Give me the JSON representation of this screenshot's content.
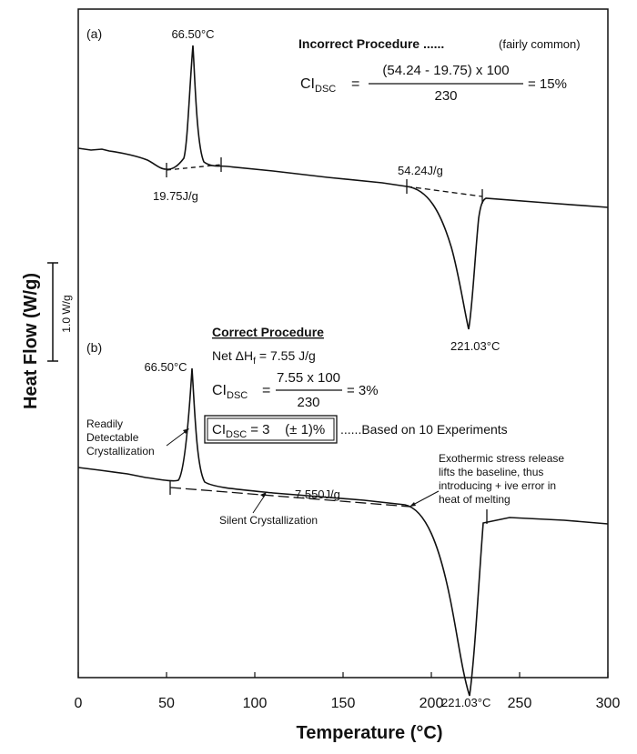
{
  "chart_data": {
    "type": "line",
    "xlabel": "Temperature (°C)",
    "ylabel": "Heat Flow (W/g)",
    "xlim": [
      0,
      300
    ],
    "xticks": [
      "0",
      "50",
      "100",
      "150",
      "200",
      "250",
      "300"
    ],
    "scale_bar_label": "1.0 W/g",
    "panels": [
      {
        "panel_label": "(a)",
        "peak_exo": {
          "temp": 66.5,
          "label": "66.50°C"
        },
        "peak_endo": {
          "temp": 221.03,
          "label": "221.03°C"
        },
        "area_cryst": "19.75J/g",
        "area_melt": "54.24J/g",
        "heading": "Incorrect Procedure ......",
        "heading_note": "(fairly common)",
        "formula_lhs": "CI",
        "formula_sub": "DSC",
        "formula_eq": "=",
        "formula_num": "(54.24 - 19.75) x 100",
        "formula_den": "230",
        "formula_result": "= 15%"
      },
      {
        "panel_label": "(b)",
        "peak_exo": {
          "temp": 66.5,
          "label": "66.50°C"
        },
        "peak_endo": {
          "temp": 221.03,
          "label": "221.03°C"
        },
        "heading": "Correct Procedure",
        "net_label": "Net ΔH",
        "net_sub": "f",
        "net_value": "= 7.55 J/g",
        "formula_lhs": "CI",
        "formula_sub": "DSC",
        "formula_eq": "=",
        "formula_num": "7.55 x 100",
        "formula_den": "230",
        "formula_result": "= 3%",
        "box_lhs": "CI",
        "box_sub": "DSC",
        "box_value": "= 3    (± 1)%",
        "box_note": "......Based on 10 Experiments",
        "area_silent": "7.550J/g",
        "annot_readily": [
          "Readily",
          "Detectable",
          "Crystallization"
        ],
        "annot_silent": "Silent Crystallization",
        "annot_exo": [
          "Exothermic stress release",
          "lifts the baseline, thus",
          "introducing + ive error in",
          "heat of melting"
        ]
      }
    ]
  }
}
